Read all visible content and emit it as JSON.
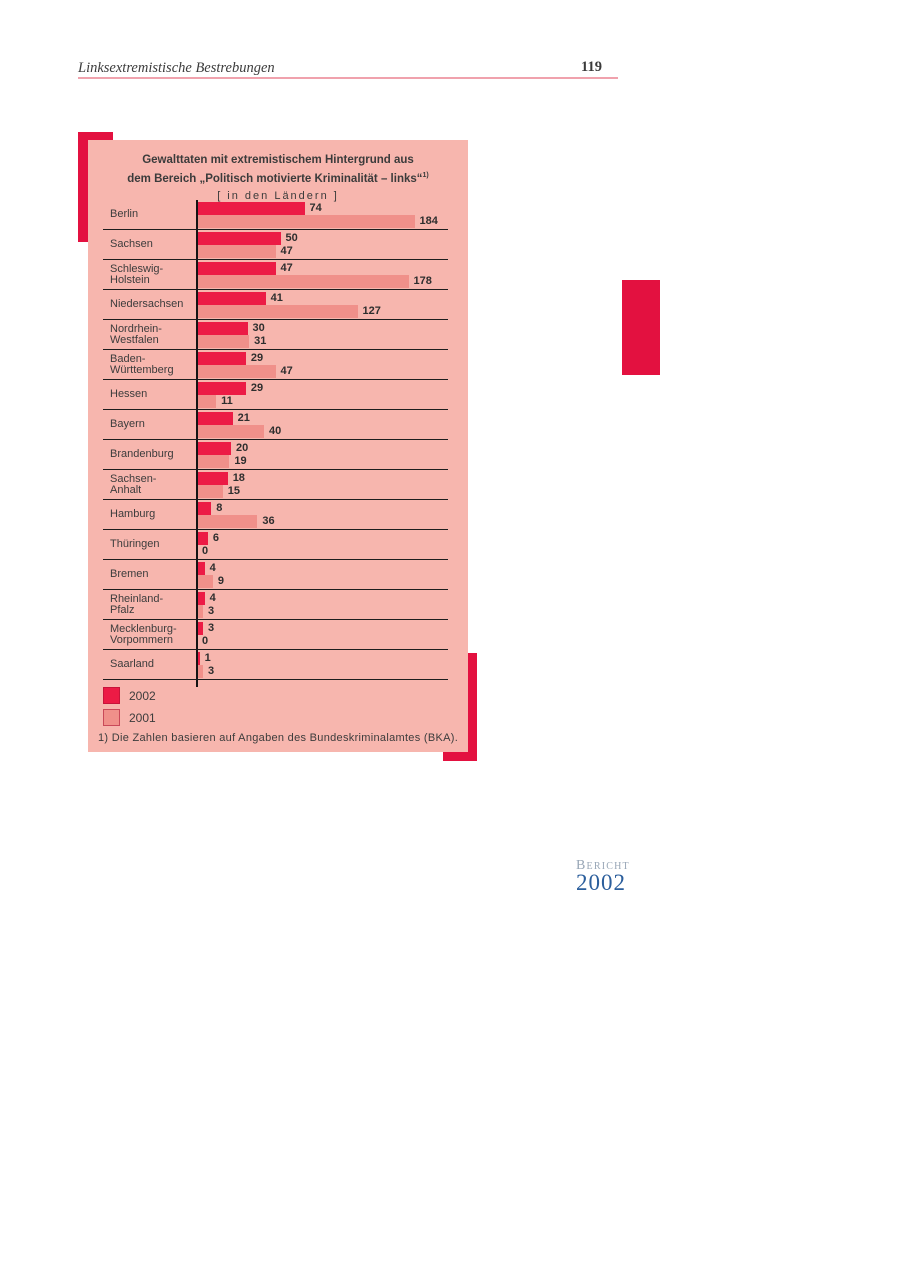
{
  "header": {
    "section_title": "Linksextremistische Bestrebungen",
    "page_number": "119"
  },
  "report_logo": {
    "word": "Bericht",
    "year": "2002"
  },
  "panel": {
    "title_line1": "Gewalttaten mit extremistischem Hintergrund aus",
    "title_line2": "dem Bereich „Politisch motivierte Kriminalität – links“",
    "title_footnote_marker": "1)",
    "subtitle": "[ in den Ländern ]",
    "footnote": "1) Die Zahlen basieren auf Angaben des Bundeskriminalamtes (BKA)."
  },
  "chart_data": {
    "type": "bar",
    "orientation": "horizontal",
    "title": "Gewalttaten mit extremistischem Hintergrund aus dem Bereich „Politisch motivierte Kriminalität – links“ [in den Ländern]",
    "categories": [
      "Berlin",
      "Sachsen",
      "Schleswig-\nHolstein",
      "Niedersachsen",
      "Nordrhein-\nWestfalen",
      "Baden-\nWürttemberg",
      "Hessen",
      "Bayern",
      "Brandenburg",
      "Sachsen-\nAnhalt",
      "Hamburg",
      "Thüringen",
      "Bremen",
      "Rheinland-\nPfalz",
      "Mecklenburg-\nVorpommern",
      "Saarland"
    ],
    "series": [
      {
        "name": "2002",
        "color": "#ec1b45",
        "values": [
          74,
          50,
          47,
          41,
          30,
          29,
          29,
          21,
          20,
          18,
          8,
          6,
          4,
          4,
          3,
          1
        ]
      },
      {
        "name": "2001",
        "color": "#f0908a",
        "values": [
          184,
          47,
          178,
          127,
          31,
          47,
          11,
          40,
          19,
          15,
          36,
          0,
          9,
          3,
          0,
          3
        ]
      }
    ],
    "value_labels": true,
    "legend_position": "bottom-left",
    "gridlines": false,
    "axis": {
      "baseline": "left-vertical",
      "xlim": [
        0,
        184
      ]
    }
  },
  "colors": {
    "accent_red": "#e31140",
    "panel_background": "#f7b6ae",
    "bar_2002": "#ec1b45",
    "bar_2001": "#f0908a",
    "separator": "#1d1d1d",
    "text_dark": "#3c3c3c",
    "header_rule_pink": "#f0a2ad",
    "logo_gray_blue": "#98a6b6",
    "logo_blue": "#2b5e9c"
  }
}
